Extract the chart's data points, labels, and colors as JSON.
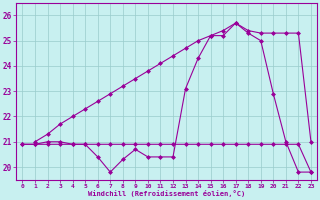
{
  "xlabel": "Windchill (Refroidissement éolien,°C)",
  "background_color": "#c8f0f0",
  "line_color": "#990099",
  "grid_color": "#99cccc",
  "xlim": [
    -0.5,
    23.5
  ],
  "ylim": [
    19.5,
    26.5
  ],
  "yticks": [
    20,
    21,
    22,
    23,
    24,
    25,
    26
  ],
  "xticks": [
    0,
    1,
    2,
    3,
    4,
    5,
    6,
    7,
    8,
    9,
    10,
    11,
    12,
    13,
    14,
    15,
    16,
    17,
    18,
    19,
    20,
    21,
    22,
    23
  ],
  "series1_x": [
    0,
    1,
    2,
    3,
    4,
    5,
    6,
    7,
    8,
    9,
    10,
    11,
    12,
    13,
    14,
    15,
    16,
    17,
    18,
    19,
    20,
    21,
    22,
    23
  ],
  "series1_y": [
    20.9,
    20.9,
    21.0,
    21.0,
    20.9,
    20.9,
    20.9,
    20.9,
    20.9,
    20.9,
    20.9,
    20.9,
    20.9,
    20.9,
    20.9,
    20.9,
    20.9,
    20.9,
    20.9,
    20.9,
    20.9,
    20.9,
    20.9,
    19.8
  ],
  "series2_x": [
    0,
    1,
    2,
    3,
    4,
    5,
    6,
    7,
    8,
    9,
    10,
    11,
    12,
    13,
    14,
    15,
    16,
    17,
    18,
    19,
    20,
    21,
    22,
    23
  ],
  "series2_y": [
    20.9,
    20.9,
    20.9,
    20.9,
    20.9,
    20.9,
    20.4,
    19.8,
    20.3,
    20.7,
    20.4,
    20.4,
    20.4,
    23.1,
    24.3,
    25.2,
    25.2,
    25.7,
    25.3,
    25.0,
    22.9,
    21.0,
    19.8,
    19.8
  ],
  "series3_x": [
    1,
    2,
    3,
    4,
    5,
    6,
    7,
    8,
    9,
    10,
    11,
    12,
    13,
    14,
    15,
    16,
    17,
    18,
    19,
    20,
    21,
    22,
    23
  ],
  "series3_y": [
    21.0,
    21.3,
    21.7,
    22.0,
    22.3,
    22.6,
    22.9,
    23.2,
    23.5,
    23.8,
    24.1,
    24.4,
    24.7,
    25.0,
    25.2,
    25.4,
    25.7,
    25.4,
    25.3,
    25.3,
    25.3,
    25.3,
    21.0
  ]
}
